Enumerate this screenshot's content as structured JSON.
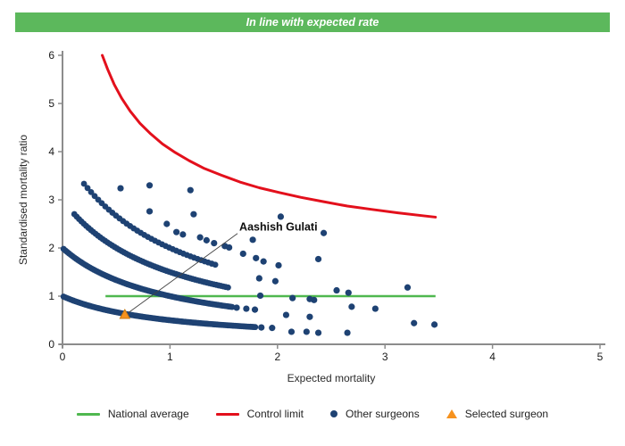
{
  "banner": {
    "text": "In line with expected rate",
    "background": "#5cb85c",
    "text_color": "#ffffff"
  },
  "chart_data": {
    "type": "scatter",
    "title": "In line with expected rate",
    "xlabel": "Expected mortality",
    "ylabel": "Standardised mortality ratio",
    "xlim": [
      0,
      5
    ],
    "ylim": [
      0,
      6
    ],
    "x_ticks": [
      "0",
      "1",
      "2",
      "3",
      "4",
      "5"
    ],
    "y_ticks": [
      "0",
      "1",
      "2",
      "3",
      "4",
      "5",
      "6"
    ],
    "grid": false,
    "axis_color": "#8c8c8c",
    "tick_label_color": "#1a1a1a",
    "national_average": {
      "label": "National average",
      "color": "#4fb84f",
      "y": 1,
      "x_start": 0.4,
      "x_end": 3.47
    },
    "control_limit": {
      "label": "Control limit",
      "color": "#e3101c",
      "points": [
        [
          0.37,
          6.0
        ],
        [
          0.42,
          5.71
        ],
        [
          0.48,
          5.4
        ],
        [
          0.55,
          5.11
        ],
        [
          0.63,
          4.84
        ],
        [
          0.72,
          4.59
        ],
        [
          0.82,
          4.37
        ],
        [
          0.93,
          4.16
        ],
        [
          1.05,
          3.98
        ],
        [
          1.18,
          3.81
        ],
        [
          1.32,
          3.65
        ],
        [
          1.48,
          3.51
        ],
        [
          1.65,
          3.37
        ],
        [
          1.83,
          3.25
        ],
        [
          2.02,
          3.15
        ],
        [
          2.22,
          3.05
        ],
        [
          2.43,
          2.96
        ],
        [
          2.65,
          2.87
        ],
        [
          2.88,
          2.8
        ],
        [
          3.12,
          2.73
        ],
        [
          3.35,
          2.67
        ],
        [
          3.47,
          2.64
        ]
      ]
    },
    "other_surgeons": {
      "label": "Other surgeons",
      "color": "#1e4273",
      "band_curve": "smr = n / (expected + 1)",
      "bands": [
        {
          "n": 1,
          "x_start": 0.01,
          "x_end": 1.8,
          "step": 0.0155
        },
        {
          "n": 2,
          "x_start": 0.01,
          "x_end": 1.58,
          "step": 0.0165
        },
        {
          "n": 3,
          "x_start": 0.11,
          "x_end": 1.56,
          "step": 0.022
        },
        {
          "n": 4,
          "x_start": 0.2,
          "x_end": 1.45,
          "step": 0.033
        }
      ],
      "scatter_points": [
        [
          0.54,
          3.24
        ],
        [
          0.81,
          3.3
        ],
        [
          1.19,
          3.2
        ],
        [
          0.81,
          2.76
        ],
        [
          0.97,
          2.5
        ],
        [
          1.06,
          2.33
        ],
        [
          1.12,
          2.28
        ],
        [
          1.28,
          2.22
        ],
        [
          1.34,
          2.16
        ],
        [
          1.41,
          2.1
        ],
        [
          1.51,
          2.04
        ],
        [
          1.55,
          2.01
        ],
        [
          1.68,
          1.88
        ],
        [
          1.8,
          1.79
        ],
        [
          1.87,
          1.72
        ],
        [
          2.01,
          1.64
        ],
        [
          3.21,
          1.18
        ],
        [
          1.22,
          2.7
        ],
        [
          1.77,
          2.17
        ],
        [
          2.38,
          1.77
        ],
        [
          2.03,
          2.65
        ],
        [
          2.43,
          2.31
        ],
        [
          1.83,
          1.37
        ],
        [
          1.98,
          1.31
        ],
        [
          2.55,
          1.12
        ],
        [
          2.66,
          1.07
        ],
        [
          1.84,
          1.01
        ],
        [
          2.14,
          0.96
        ],
        [
          2.3,
          0.94
        ],
        [
          2.34,
          0.92
        ],
        [
          2.69,
          0.78
        ],
        [
          2.91,
          0.74
        ],
        [
          1.62,
          0.76
        ],
        [
          1.71,
          0.74
        ],
        [
          1.79,
          0.72
        ],
        [
          2.08,
          0.61
        ],
        [
          2.3,
          0.57
        ],
        [
          1.85,
          0.35
        ],
        [
          1.95,
          0.34
        ],
        [
          2.13,
          0.26
        ],
        [
          2.27,
          0.26
        ],
        [
          2.38,
          0.24
        ],
        [
          2.65,
          0.24
        ],
        [
          3.27,
          0.44
        ],
        [
          3.46,
          0.41
        ]
      ]
    },
    "selected_surgeon": {
      "label": "Selected surgeon",
      "color": "#f6921e",
      "edge_color": "#c97a12",
      "name": "Aashish Gulati",
      "x": 0.58,
      "y": 0.62,
      "callout": {
        "text_x": 1.645,
        "text_y": 2.36,
        "line_from": [
          1.628,
          2.3
        ],
        "line_to": [
          0.615,
          0.66
        ],
        "line_color": "#444444"
      }
    }
  },
  "legend": {
    "items": [
      {
        "marker": "line",
        "color": "#4fb84f",
        "label": "National average"
      },
      {
        "marker": "line",
        "color": "#e3101c",
        "label": "Control limit"
      },
      {
        "marker": "dot",
        "color": "#1e4273",
        "label": "Other surgeons"
      },
      {
        "marker": "triangle",
        "color": "#f6921e",
        "label": "Selected surgeon"
      }
    ]
  }
}
